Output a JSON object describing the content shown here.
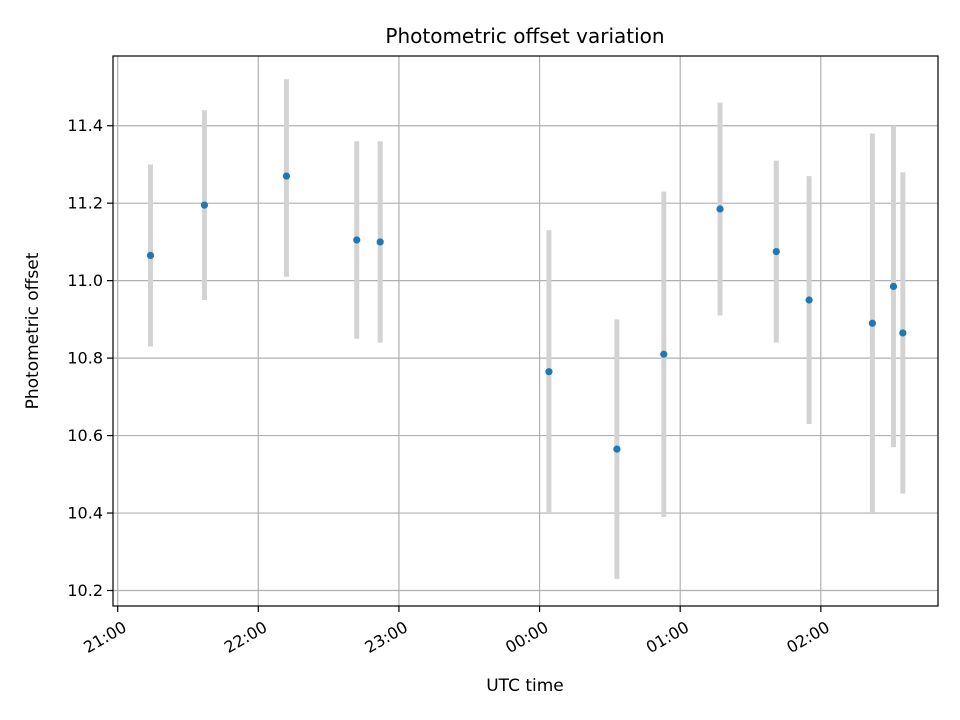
{
  "chart_data": {
    "type": "scatter",
    "title": "Photometric offset variation",
    "xlabel": "UTC time",
    "ylabel": "Photometric offset",
    "x_ticks": [
      "21:00",
      "22:00",
      "23:00",
      "00:00",
      "01:00",
      "02:00"
    ],
    "y_ticks": [
      "10.2",
      "10.4",
      "10.6",
      "10.8",
      "11.0",
      "11.2",
      "11.4"
    ],
    "xlim": [
      "20:58",
      "02:50"
    ],
    "ylim": [
      10.16,
      11.58
    ],
    "grid": true,
    "marker_color": "#1f77b4",
    "errorbar_color": "#d3d3d3",
    "points": [
      {
        "x": "21:14",
        "y": 11.065,
        "ylow": 10.83,
        "yhigh": 11.3
      },
      {
        "x": "21:37",
        "y": 11.195,
        "ylow": 10.95,
        "yhigh": 11.44
      },
      {
        "x": "22:12",
        "y": 11.27,
        "ylow": 11.01,
        "yhigh": 11.52
      },
      {
        "x": "22:42",
        "y": 11.105,
        "ylow": 10.85,
        "yhigh": 11.36
      },
      {
        "x": "22:52",
        "y": 11.1,
        "ylow": 10.84,
        "yhigh": 11.36
      },
      {
        "x": "00:04",
        "y": 10.765,
        "ylow": 10.4,
        "yhigh": 11.13
      },
      {
        "x": "00:33",
        "y": 10.565,
        "ylow": 10.23,
        "yhigh": 10.9
      },
      {
        "x": "00:53",
        "y": 10.81,
        "ylow": 10.39,
        "yhigh": 11.23
      },
      {
        "x": "01:17",
        "y": 11.185,
        "ylow": 10.91,
        "yhigh": 11.46
      },
      {
        "x": "01:41",
        "y": 11.075,
        "ylow": 10.84,
        "yhigh": 11.31
      },
      {
        "x": "01:55",
        "y": 10.95,
        "ylow": 10.63,
        "yhigh": 11.27
      },
      {
        "x": "02:22",
        "y": 10.89,
        "ylow": 10.4,
        "yhigh": 11.38
      },
      {
        "x": "02:31",
        "y": 10.985,
        "ylow": 10.57,
        "yhigh": 11.4
      },
      {
        "x": "02:35",
        "y": 10.865,
        "ylow": 10.45,
        "yhigh": 11.28
      }
    ]
  }
}
